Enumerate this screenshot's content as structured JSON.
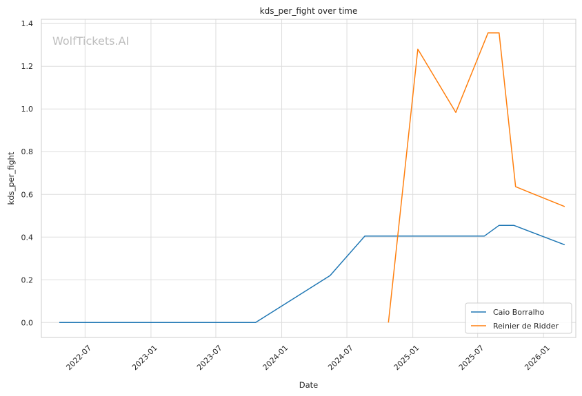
{
  "chart_data": {
    "type": "line",
    "title": "kds_per_fight over time",
    "xlabel": "Date",
    "ylabel": "kds_per_fight",
    "watermark": "WolfTickets.AI",
    "xlim": [
      "2022-03-01",
      "2026-04-01"
    ],
    "ylim": [
      -0.07,
      1.42
    ],
    "y_ticks": [
      0.0,
      0.2,
      0.4,
      0.6,
      0.8,
      1.0,
      1.2,
      1.4
    ],
    "y_tick_labels": [
      "0.0",
      "0.2",
      "0.4",
      "0.6",
      "0.8",
      "1.0",
      "1.2",
      "1.4"
    ],
    "x_ticks": [
      "2022-07-01",
      "2023-01-01",
      "2023-07-01",
      "2024-01-01",
      "2024-07-01",
      "2025-01-01",
      "2025-07-01",
      "2026-01-01"
    ],
    "x_tick_labels": [
      "2022-07",
      "2023-01",
      "2023-07",
      "2024-01",
      "2024-07",
      "2025-01",
      "2025-07",
      "2026-01"
    ],
    "grid": true,
    "legend_position": "lower-right",
    "series": [
      {
        "name": "Caio Borralho",
        "color": "#1f77b4",
        "x": [
          "2022-04-20",
          "2023-10-20",
          "2024-05-15",
          "2024-08-20",
          "2025-07-20",
          "2025-08-30",
          "2025-10-10",
          "2026-03-01"
        ],
        "y": [
          0.0,
          0.0,
          0.22,
          0.405,
          0.405,
          0.455,
          0.455,
          0.364
        ]
      },
      {
        "name": "Reinier de Ridder",
        "color": "#ff7f0e",
        "x": [
          "2024-10-25",
          "2025-01-15",
          "2025-05-01",
          "2025-07-30",
          "2025-08-30",
          "2025-10-15",
          "2026-03-01"
        ],
        "y": [
          0.0,
          1.28,
          0.984,
          1.356,
          1.356,
          0.636,
          0.543
        ]
      }
    ]
  }
}
